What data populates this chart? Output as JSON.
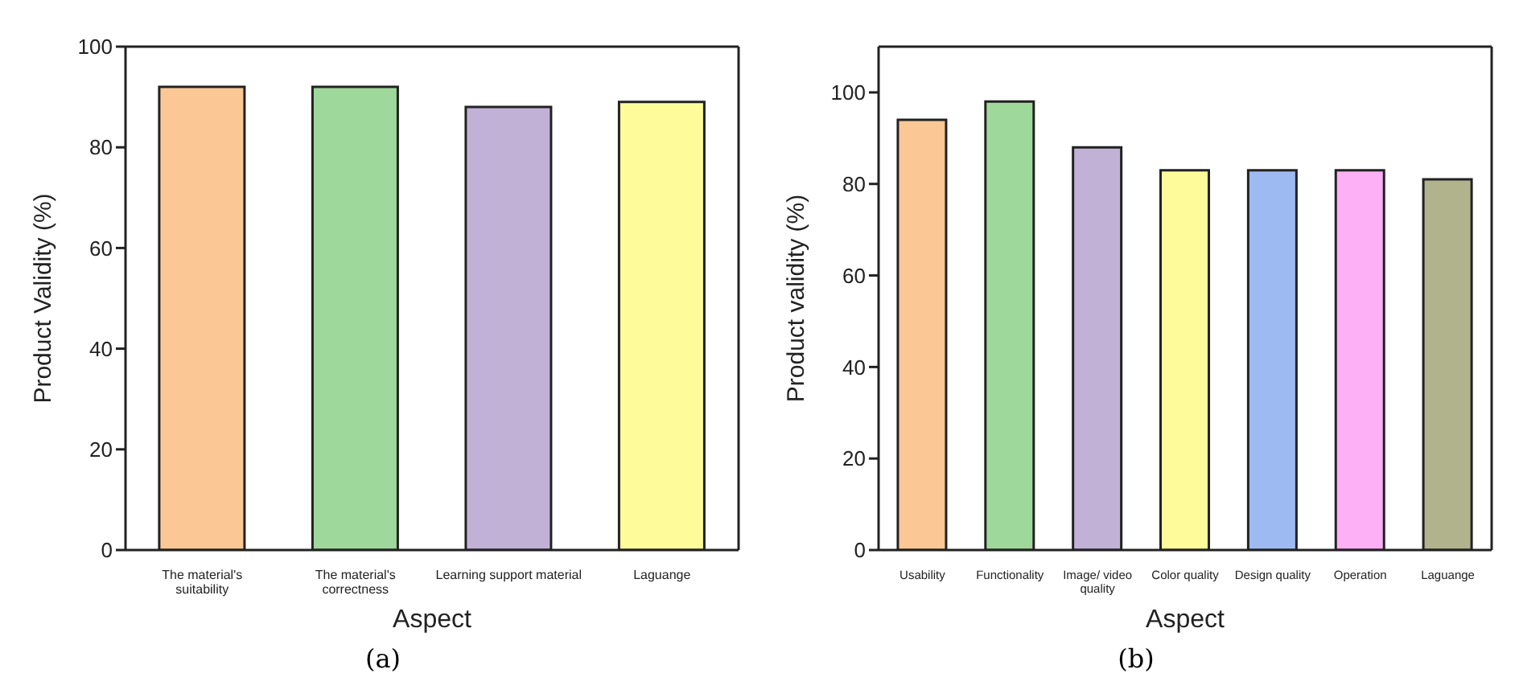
{
  "chart_data": [
    {
      "type": "bar",
      "xlabel": "Aspect",
      "ylabel": "Product Validity (%)",
      "categories": [
        "The material's suitability",
        "The material's correctness",
        "Learning support material",
        "Laguange"
      ],
      "values": [
        92,
        92,
        88,
        89
      ],
      "colors": [
        "#fbc895",
        "#9fd89b",
        "#c2b1d6",
        "#fefc9a"
      ],
      "ylim": [
        0,
        100
      ],
      "yticks": [
        0,
        20,
        40,
        60,
        80,
        100
      ],
      "annotations": [
        "(a)"
      ]
    },
    {
      "type": "bar",
      "xlabel": "Aspect",
      "ylabel": "Product validity (%)",
      "categories": [
        "Usability",
        "Functionality",
        "Image/ video quality",
        "Color quality",
        "Design quality",
        "Operation",
        "Laguange"
      ],
      "values": [
        94,
        98,
        88,
        83,
        83,
        83,
        81
      ],
      "colors": [
        "#fbc895",
        "#9fd89b",
        "#c2b1d6",
        "#fefc9a",
        "#9dbbf2",
        "#fdb0f6",
        "#b0b38c"
      ],
      "ylim": [
        0,
        110
      ],
      "yticks": [
        0,
        20,
        40,
        60,
        80,
        100
      ],
      "annotations": [
        "(b)"
      ]
    }
  ]
}
